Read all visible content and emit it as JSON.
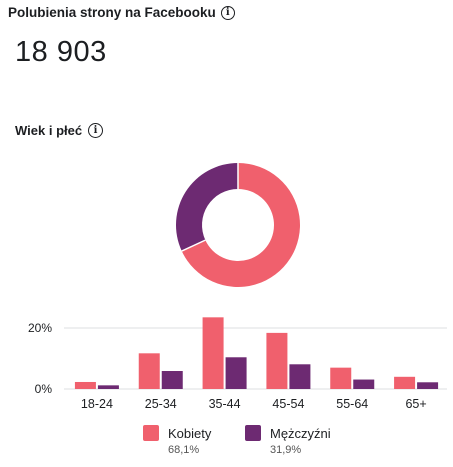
{
  "header": {
    "title": "Polubienia strony na Facebooku",
    "total_likes": "18 903",
    "section_title": "Wiek i płeć"
  },
  "icons": {
    "info": "info-circle-icon"
  },
  "colors": {
    "women": "#f0606d",
    "men": "#6d2a72",
    "grid": "#dddfe2",
    "axis_text": "#4b4f56"
  },
  "chart_data": [
    {
      "type": "pie",
      "variant": "donut",
      "categories": [
        "Kobiety",
        "Mężczyźni"
      ],
      "values": [
        68.1,
        31.9
      ],
      "title": ""
    },
    {
      "type": "bar",
      "categories": [
        "18-24",
        "25-34",
        "35-44",
        "45-54",
        "55-64",
        "65+"
      ],
      "series": [
        {
          "name": "Kobiety",
          "values": [
            2.3,
            11.7,
            23.5,
            18.4,
            7.0,
            4.0
          ]
        },
        {
          "name": "Mężczyźni",
          "values": [
            1.2,
            5.9,
            10.4,
            8.1,
            3.1,
            2.2
          ]
        }
      ],
      "yticks": [
        "0%",
        "20%"
      ],
      "ylim": [
        0,
        26
      ],
      "grid": true,
      "legend": "bottom-center",
      "title": "",
      "xlabel": "",
      "ylabel": ""
    }
  ],
  "legend": [
    {
      "label": "Kobiety",
      "value": "68,1%"
    },
    {
      "label": "Mężczyźni",
      "value": "31,9%"
    }
  ]
}
